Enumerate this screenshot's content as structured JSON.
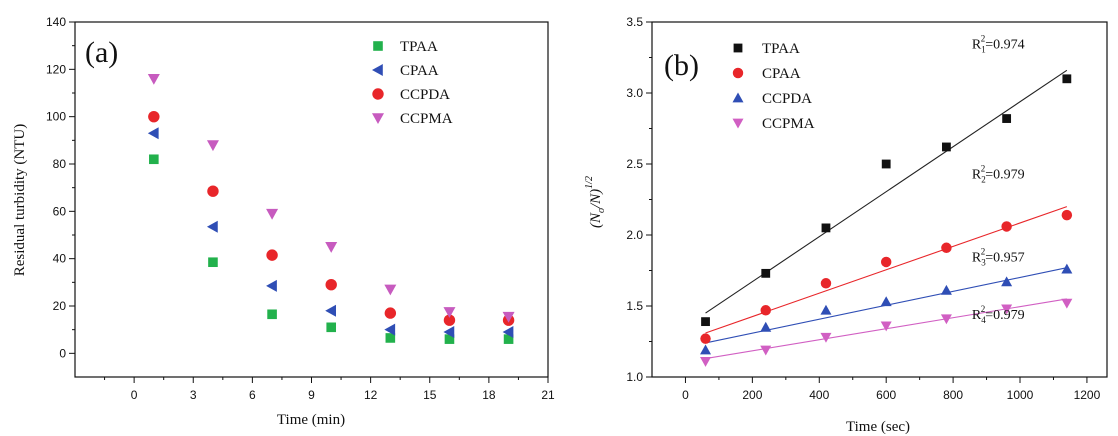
{
  "chart_data": [
    {
      "type": "scatter",
      "panel_label": "(a)",
      "xlabel": "Time (min)",
      "ylabel": "Residual turbidity (NTU)",
      "xlim": [
        -3,
        21
      ],
      "ylim": [
        -10,
        140
      ],
      "xticks": [
        "0",
        "3",
        "6",
        "9",
        "12",
        "15",
        "18",
        "21"
      ],
      "yticks": [
        "0",
        "20",
        "40",
        "60",
        "80",
        "100",
        "120",
        "140"
      ],
      "legend_position": "top-right",
      "series": [
        {
          "name": "TPAA",
          "marker": "square",
          "color": "#22b14c",
          "x": [
            1,
            4,
            7,
            10,
            13,
            16,
            19
          ],
          "y": [
            82,
            38.5,
            16.5,
            11,
            6.5,
            6,
            6
          ]
        },
        {
          "name": "CPAA",
          "marker": "triangle-left",
          "color": "#2f4eb5",
          "x": [
            1,
            4,
            7,
            10,
            13,
            16,
            19
          ],
          "y": [
            93,
            53.5,
            28.5,
            18,
            10,
            9,
            9
          ]
        },
        {
          "name": "CCPDA",
          "marker": "circle",
          "color": "#e8262a",
          "x": [
            1,
            4,
            7,
            10,
            13,
            16,
            19
          ],
          "y": [
            100,
            68.5,
            41.5,
            29,
            17,
            14,
            14
          ]
        },
        {
          "name": "CCPMA",
          "marker": "triangle-down",
          "color": "#c75bbf",
          "x": [
            1,
            4,
            7,
            10,
            13,
            16,
            19
          ],
          "y": [
            116,
            88,
            59,
            45,
            27,
            17.5,
            15.5
          ]
        }
      ]
    },
    {
      "type": "scatter",
      "panel_label": "(b)",
      "xlabel": "Time (sec)",
      "ylabel_main": "(N",
      "ylabel_sub1": "o",
      "ylabel_mid": "/N)",
      "ylabel_sup": "1/2",
      "xlim": [
        -100,
        1260
      ],
      "ylim": [
        1.0,
        3.5
      ],
      "xticks": [
        "0",
        "200",
        "400",
        "600",
        "800",
        "1000",
        "1200"
      ],
      "yticks": [
        "1.0",
        "1.5",
        "2.0",
        "2.5",
        "3.0",
        "3.5"
      ],
      "legend_position": "top-left",
      "series": [
        {
          "name": "TPAA",
          "marker": "square",
          "color": "#111111",
          "fit_color": "#222222",
          "x": [
            60,
            240,
            420,
            600,
            780,
            960,
            1140
          ],
          "y": [
            1.39,
            1.73,
            2.05,
            2.5,
            2.62,
            2.82,
            3.1
          ],
          "fit": [
            1.45,
            3.16
          ],
          "r2_label": {
            "R": "R",
            "sub": "1",
            "sup": "2",
            "value": "=0.974"
          }
        },
        {
          "name": "CPAA",
          "marker": "circle",
          "color": "#e8262a",
          "fit_color": "#e8262a",
          "x": [
            60,
            240,
            420,
            600,
            780,
            960,
            1140
          ],
          "y": [
            1.27,
            1.47,
            1.66,
            1.81,
            1.91,
            2.06,
            2.14
          ],
          "fit": [
            1.31,
            2.2
          ],
          "r2_label": {
            "R": "R",
            "sub": "2",
            "sup": "2",
            "value": "=0.979"
          }
        },
        {
          "name": "CCPDA",
          "marker": "triangle-up",
          "color": "#2f4eb5",
          "fit_color": "#2f4eb5",
          "x": [
            60,
            240,
            420,
            600,
            780,
            960,
            1140
          ],
          "y": [
            1.19,
            1.35,
            1.47,
            1.53,
            1.61,
            1.67,
            1.76
          ],
          "fit": [
            1.24,
            1.77
          ],
          "r2_label": {
            "R": "R",
            "sub": "3",
            "sup": "2",
            "value": "=0.957"
          }
        },
        {
          "name": "CCPMA",
          "marker": "triangle-down",
          "color": "#d15fc3",
          "fit_color": "#d15fc3",
          "x": [
            60,
            240,
            420,
            600,
            780,
            960,
            1140
          ],
          "y": [
            1.11,
            1.19,
            1.28,
            1.36,
            1.41,
            1.48,
            1.52
          ],
          "fit": [
            1.13,
            1.55
          ],
          "r2_label": {
            "R": "R",
            "sub": "4",
            "sup": "2",
            "value": "=0.979"
          }
        }
      ]
    }
  ]
}
